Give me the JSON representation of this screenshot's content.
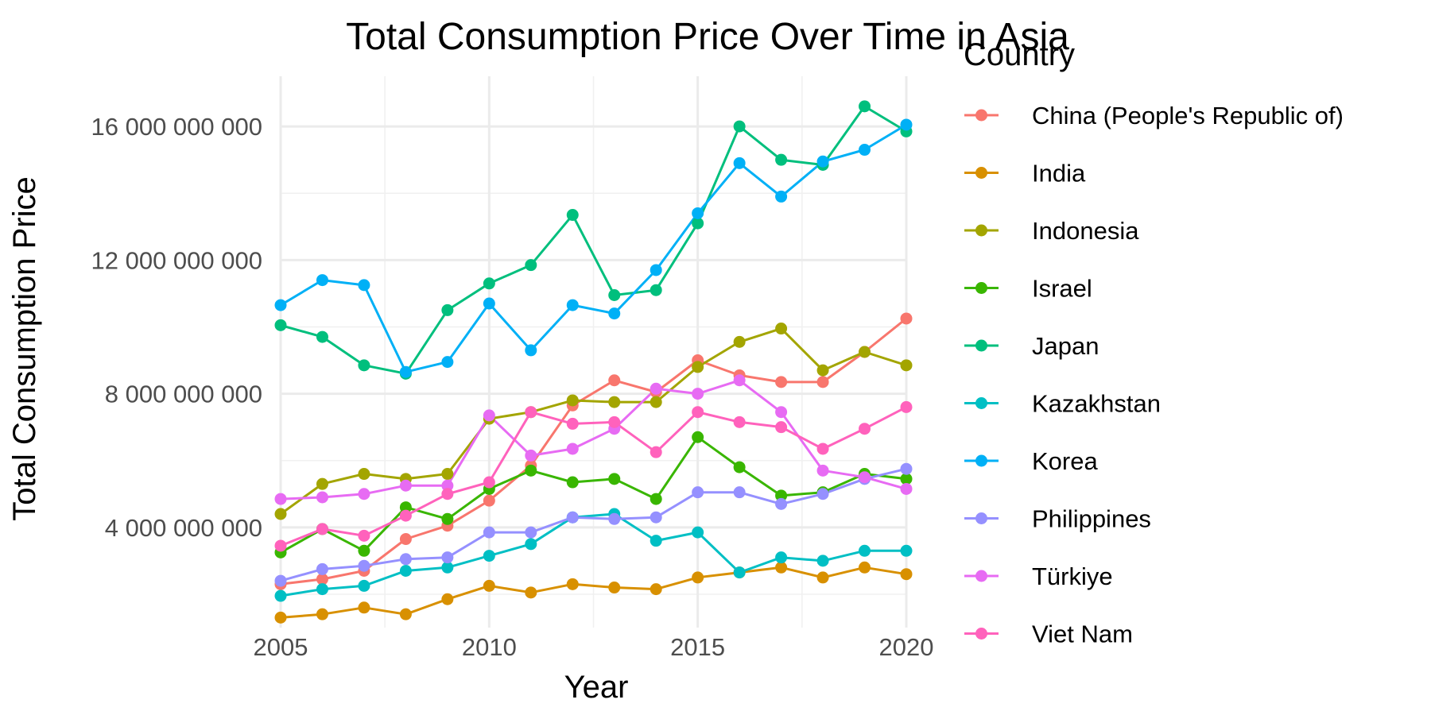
{
  "chart_data": {
    "type": "line",
    "title": "Total Consumption Price Over Time in Asia",
    "xlabel": "Year",
    "ylabel": "Total Consumption Price",
    "legend_title": "Country",
    "legend_position": "right",
    "grid": true,
    "x": [
      2005,
      2006,
      2007,
      2008,
      2009,
      2010,
      2011,
      2012,
      2013,
      2014,
      2015,
      2016,
      2017,
      2018,
      2019,
      2020
    ],
    "xlim": [
      2005,
      2020
    ],
    "ylim": [
      1000000000,
      17500000000
    ],
    "x_ticks": [
      2005,
      2010,
      2015,
      2020
    ],
    "x_tick_labels": [
      "2005",
      "2010",
      "2015",
      "2020"
    ],
    "y_ticks": [
      4000000000,
      8000000000,
      12000000000,
      16000000000
    ],
    "y_tick_labels": [
      "4 000 000 000",
      "8 000 000 000",
      "12 000 000 000",
      "16 000 000 000"
    ],
    "series": [
      {
        "name": "China (People's Republic of)",
        "color": "#F8766D",
        "values": [
          2300000000,
          2450000000,
          2700000000,
          3650000000,
          4050000000,
          4800000000,
          5850000000,
          7650000000,
          8400000000,
          8050000000,
          9000000000,
          8550000000,
          8350000000,
          8350000000,
          9250000000,
          10250000000
        ]
      },
      {
        "name": "India",
        "color": "#D89000",
        "values": [
          1300000000,
          1400000000,
          1600000000,
          1400000000,
          1850000000,
          2250000000,
          2050000000,
          2300000000,
          2200000000,
          2150000000,
          2500000000,
          2650000000,
          2800000000,
          2500000000,
          2800000000,
          2600000000
        ]
      },
      {
        "name": "Indonesia",
        "color": "#A3A500",
        "values": [
          4400000000,
          5300000000,
          5600000000,
          5450000000,
          5600000000,
          7250000000,
          7450000000,
          7800000000,
          7750000000,
          7750000000,
          8800000000,
          9550000000,
          9950000000,
          8700000000,
          9250000000,
          8850000000
        ]
      },
      {
        "name": "Israel",
        "color": "#39B600",
        "values": [
          3250000000,
          3950000000,
          3300000000,
          4600000000,
          4250000000,
          5150000000,
          5700000000,
          5350000000,
          5450000000,
          4850000000,
          6700000000,
          5800000000,
          4950000000,
          5050000000,
          5600000000,
          5450000000
        ]
      },
      {
        "name": "Japan",
        "color": "#00BF7D",
        "values": [
          10050000000,
          9700000000,
          8850000000,
          8600000000,
          10500000000,
          11300000000,
          11850000000,
          13350000000,
          10950000000,
          11100000000,
          13100000000,
          16000000000,
          15000000000,
          14850000000,
          16600000000,
          15850000000
        ]
      },
      {
        "name": "Kazakhstan",
        "color": "#00BFC4",
        "values": [
          1950000000,
          2150000000,
          2250000000,
          2700000000,
          2800000000,
          3150000000,
          3500000000,
          4300000000,
          4400000000,
          3600000000,
          3850000000,
          2650000000,
          3100000000,
          3000000000,
          3300000000,
          3300000000
        ]
      },
      {
        "name": "Korea",
        "color": "#00B0F6",
        "values": [
          10650000000,
          11400000000,
          11250000000,
          8650000000,
          8950000000,
          10700000000,
          9300000000,
          10650000000,
          10400000000,
          11700000000,
          13400000000,
          14900000000,
          13900000000,
          14950000000,
          15300000000,
          16050000000
        ]
      },
      {
        "name": "Philippines",
        "color": "#9590FF",
        "values": [
          2400000000,
          2750000000,
          2850000000,
          3050000000,
          3100000000,
          3850000000,
          3850000000,
          4300000000,
          4250000000,
          4300000000,
          5050000000,
          5050000000,
          4700000000,
          5000000000,
          5450000000,
          5750000000
        ]
      },
      {
        "name": "Türkiye",
        "color": "#E76BF3",
        "values": [
          4850000000,
          4900000000,
          5000000000,
          5250000000,
          5250000000,
          7350000000,
          6150000000,
          6350000000,
          6950000000,
          8150000000,
          8000000000,
          8400000000,
          7450000000,
          5700000000,
          5500000000,
          5150000000
        ]
      },
      {
        "name": "Viet Nam",
        "color": "#FF62BC",
        "values": [
          3450000000,
          3950000000,
          3750000000,
          4350000000,
          5000000000,
          5350000000,
          7450000000,
          7100000000,
          7150000000,
          6250000000,
          7450000000,
          7150000000,
          7000000000,
          6350000000,
          6950000000,
          7600000000
        ]
      }
    ]
  }
}
